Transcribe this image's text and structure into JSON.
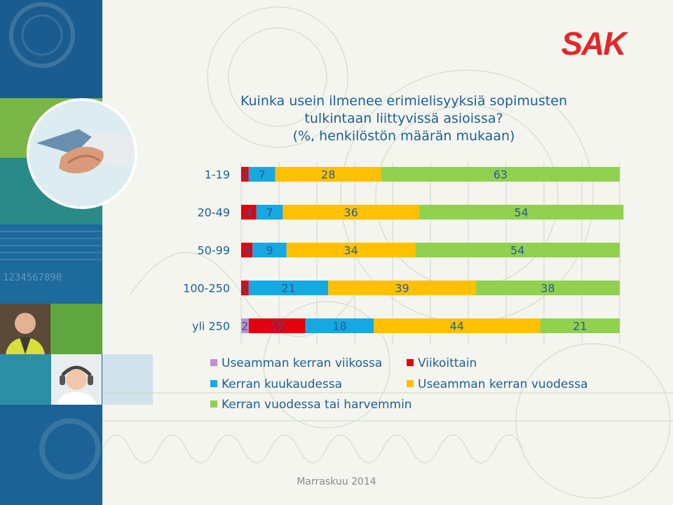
{
  "brand": {
    "logo_text": "SAK",
    "logo_color": "#e3262b"
  },
  "footer": {
    "date": "Marraskuu 2014"
  },
  "colors": {
    "text": "#1f5f95",
    "panel_blue": "#1a5f94",
    "panel_green": "#5e9a3c",
    "panel_teal": "#2b8a87"
  },
  "chart_data": {
    "type": "bar",
    "orientation": "horizontal",
    "stacked": true,
    "title": "Kuinka usein ilmenee erimielisyyksiä sopimusten tulkintaan liittyvissä asioissa?",
    "title_lines": [
      "Kuinka usein ilmenee erimielisyyksiä sopimusten",
      "tulkintaan liittyvissä asioissa?",
      "(%, henkilöstön määrän mukaan)"
    ],
    "subtitle": "(%, henkilöstön määrän mukaan)",
    "categories": [
      "1-19",
      "20-49",
      "50-99",
      "100-250",
      "yli 250"
    ],
    "xlim": [
      0,
      100
    ],
    "grid": true,
    "legend_position": "bottom",
    "series": [
      {
        "name": "Useamman kerran viikossa",
        "color": "#c48fce",
        "values": [
          0,
          0,
          0,
          0,
          2
        ],
        "labels": [
          "",
          "",
          "",
          "",
          "2"
        ]
      },
      {
        "name": "Viikoittain",
        "color": "#e3000f",
        "values": [
          2,
          4,
          3,
          2,
          15
        ],
        "labels": [
          "2",
          "4",
          "3",
          "2",
          "15"
        ]
      },
      {
        "name": "Kerran kuukaudessa",
        "color": "#16a9e1",
        "values": [
          7,
          7,
          9,
          21,
          18
        ],
        "labels": [
          "7",
          "7",
          "9",
          "21",
          "18"
        ]
      },
      {
        "name": "Useamman kerran vuodessa",
        "color": "#ffc000",
        "values": [
          28,
          36,
          34,
          39,
          44
        ],
        "labels": [
          "28",
          "36",
          "34",
          "39",
          "44"
        ]
      },
      {
        "name": "Kerran vuodessa tai harvemmin",
        "color": "#92d050",
        "values": [
          63,
          54,
          54,
          38,
          21
        ],
        "labels": [
          "63",
          "54",
          "54",
          "38",
          "21"
        ]
      }
    ]
  }
}
